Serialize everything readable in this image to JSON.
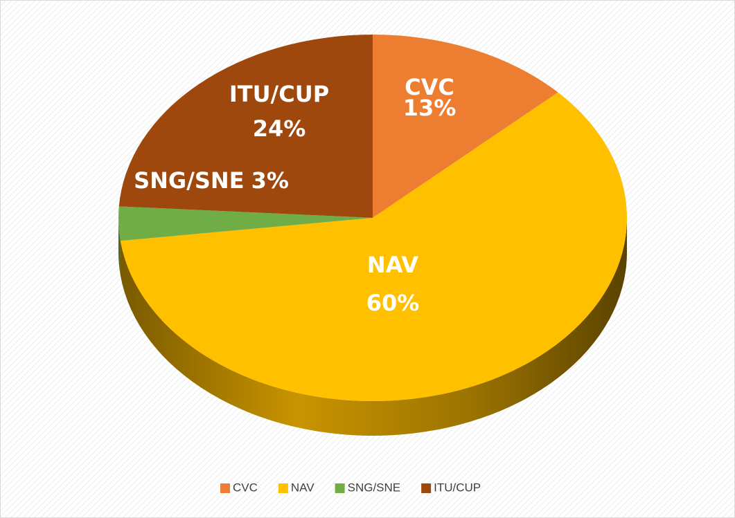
{
  "chart_data": {
    "type": "pie",
    "categories": [
      "CVC",
      "NAV",
      "SNG/SNE",
      "ITU/CUP"
    ],
    "values": [
      13,
      60,
      3,
      24
    ],
    "value_labels": [
      "13%",
      "60%",
      "3%",
      "24%"
    ],
    "colors": [
      "#ed7d31",
      "#ffc000",
      "#70ad47",
      "#9e480e"
    ],
    "legend": "bottom"
  }
}
